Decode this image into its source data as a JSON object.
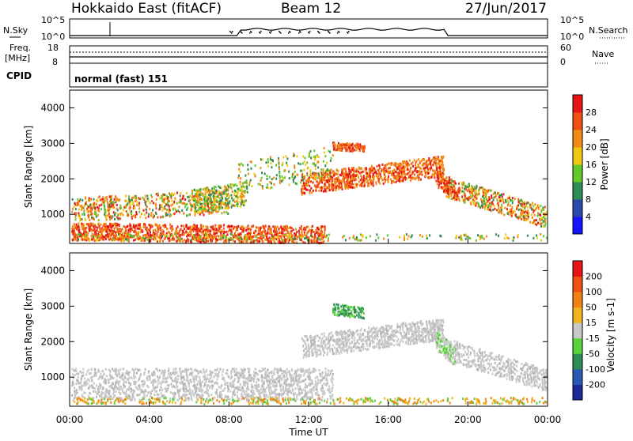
{
  "header": {
    "station": "Hokkaido East (fitACF)",
    "beam": "Beam 12",
    "date": "27/Jun/2017"
  },
  "noise_panel": {
    "left_label": "N.Sky",
    "right_label": "N.Search",
    "left_ticks": [
      "10^5",
      "10^0"
    ],
    "right_ticks": [
      "10^5",
      "10^0"
    ]
  },
  "freq_panel": {
    "left_label_line1": "Freq.",
    "left_label_line2": "[MHz]",
    "right_label": "Nave",
    "left_ticks": [
      "18",
      "8"
    ],
    "right_ticks": [
      "60",
      "0"
    ]
  },
  "cpid": {
    "label": "CPID",
    "value": "normal (fast) 151"
  },
  "chart_data": [
    {
      "type": "heatmap",
      "title": "",
      "ylabel": "Slant Range [km]",
      "xlabel": "",
      "ylim": [
        180,
        4500
      ],
      "yticks": [
        "1000",
        "2000",
        "3000",
        "4000"
      ],
      "colorbar_label": "Power [dB]",
      "colorbar_ticks": [
        "4",
        "8",
        "12",
        "16",
        "20",
        "24",
        "28"
      ],
      "colorbar_colors": [
        "#1414ff",
        "#2a4aa8",
        "#2e8b57",
        "#64c82d",
        "#f0c814",
        "#f08c14",
        "#f05014",
        "#e61414"
      ]
    },
    {
      "type": "heatmap",
      "title": "",
      "ylabel": "Slant Range [km]",
      "xlabel": "Time UT",
      "ylim": [
        180,
        4500
      ],
      "xticks": [
        "00:00",
        "04:00",
        "08:00",
        "12:00",
        "16:00",
        "20:00",
        "00:00"
      ],
      "yticks": [
        "1000",
        "2000",
        "3000",
        "4000"
      ],
      "colorbar_label": "Velocity [m s-1]",
      "colorbar_ticks": [
        "200",
        "100",
        "50",
        "15",
        "-15",
        "-50",
        "-100",
        "-200"
      ],
      "colorbar_colors": [
        "#1a2a9a",
        "#2a5ab0",
        "#2e8b57",
        "#5ad23c",
        "#c8c8c8",
        "#f0b41e",
        "#f08214",
        "#f05014",
        "#e61414"
      ]
    }
  ]
}
